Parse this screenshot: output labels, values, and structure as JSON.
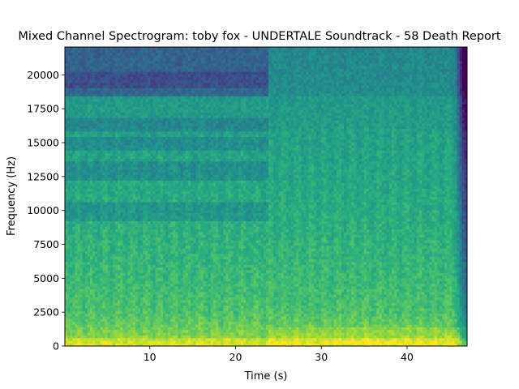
{
  "chart_data": {
    "type": "heatmap",
    "title": "Mixed Channel Spectrogram: toby fox - UNDERTALE Soundtrack - 58 Death Report",
    "xlabel": "Time (s)",
    "ylabel": "Frequency (Hz)",
    "xlim": [
      0.1,
      47.0
    ],
    "ylim": [
      0,
      22050
    ],
    "xticks": [
      10,
      20,
      30,
      40
    ],
    "yticks": [
      0,
      2500,
      5000,
      7500,
      10000,
      12500,
      15000,
      17500,
      20000
    ],
    "colormap": "viridis",
    "song_change_time": 23.7,
    "audio_end_time": 45.6,
    "rolloff_band_hz": [
      18400,
      22050
    ]
  },
  "colors": {
    "colormap_stops": [
      "#440154",
      "#472f7d",
      "#3b528b",
      "#2c728e",
      "#21918c",
      "#28ae80",
      "#5ec962",
      "#addc30",
      "#fde725"
    ]
  }
}
